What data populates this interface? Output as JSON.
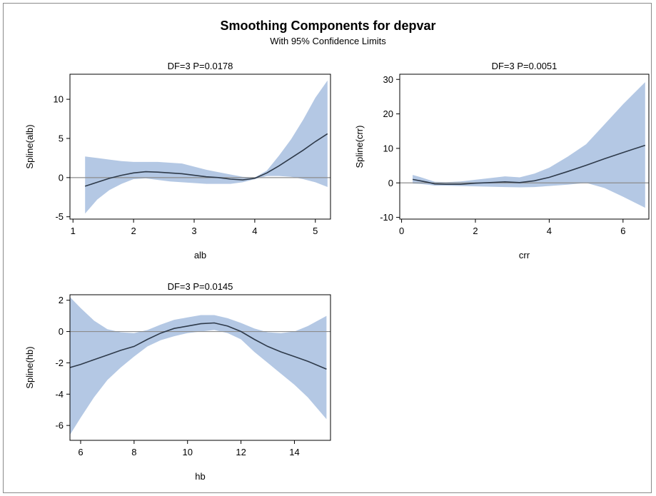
{
  "title": "Smoothing Components for depvar",
  "subtitle": "With 95% Confidence Limits",
  "colors": {
    "band": "#b4c8e4",
    "line": "#2e3a4a",
    "ref": "#8c8c8c",
    "axis": "#000000"
  },
  "chart_data": [
    {
      "type": "line",
      "panel_title": "DF=3   P=0.0178",
      "xlabel": "alb",
      "ylabel": "Spline(alb)",
      "xlim": [
        0.95,
        5.25
      ],
      "ylim": [
        -5.3,
        13.2
      ],
      "xticks": [
        1,
        2,
        3,
        4,
        5
      ],
      "yticks": [
        -5,
        0,
        5,
        10
      ],
      "reference_y": 0,
      "x": [
        1.2,
        1.4,
        1.6,
        1.8,
        2.0,
        2.2,
        2.4,
        2.6,
        2.8,
        3.0,
        3.2,
        3.4,
        3.6,
        3.8,
        4.0,
        4.2,
        4.4,
        4.6,
        4.8,
        5.0,
        5.2
      ],
      "series": [
        {
          "role": "estimate",
          "values": [
            -1.1,
            -0.6,
            -0.1,
            0.3,
            0.6,
            0.75,
            0.7,
            0.6,
            0.5,
            0.3,
            0.1,
            0.0,
            -0.2,
            -0.3,
            -0.1,
            0.6,
            1.5,
            2.5,
            3.5,
            4.6,
            5.6
          ]
        },
        {
          "role": "lower",
          "values": [
            -4.6,
            -2.8,
            -1.6,
            -0.8,
            -0.2,
            -0.1,
            -0.3,
            -0.5,
            -0.6,
            -0.7,
            -0.8,
            -0.8,
            -0.8,
            -0.6,
            -0.2,
            0.2,
            0.2,
            0.1,
            -0.2,
            -0.6,
            -1.2
          ]
        },
        {
          "role": "upper",
          "values": [
            2.7,
            2.5,
            2.3,
            2.1,
            2.0,
            2.0,
            2.0,
            1.9,
            1.8,
            1.4,
            1.0,
            0.7,
            0.4,
            0.1,
            0.0,
            0.9,
            2.8,
            4.9,
            7.4,
            10.2,
            12.4
          ]
        }
      ]
    },
    {
      "type": "line",
      "panel_title": "DF=3   P=0.0051",
      "xlabel": "crr",
      "ylabel": "Spline(crr)",
      "xlim": [
        -0.05,
        6.7
      ],
      "ylim": [
        -10.5,
        31.5
      ],
      "xticks": [
        0,
        2,
        4,
        6
      ],
      "yticks": [
        -10,
        0,
        10,
        20,
        30
      ],
      "reference_y": 0,
      "x": [
        0.3,
        0.5,
        0.7,
        0.9,
        1.2,
        1.6,
        2.0,
        2.4,
        2.8,
        3.2,
        3.6,
        4.0,
        4.5,
        5.0,
        5.5,
        6.0,
        6.6
      ],
      "series": [
        {
          "role": "estimate",
          "values": [
            1.0,
            0.6,
            0.2,
            -0.3,
            -0.4,
            -0.4,
            -0.1,
            0.1,
            0.3,
            0.1,
            0.6,
            1.6,
            3.3,
            5.1,
            7.0,
            8.8,
            10.9
          ]
        },
        {
          "role": "lower",
          "values": [
            -0.2,
            -0.3,
            -0.5,
            -0.8,
            -0.8,
            -0.9,
            -1.0,
            -1.1,
            -1.2,
            -1.3,
            -1.2,
            -0.9,
            -0.5,
            0.0,
            -1.5,
            -4.0,
            -7.2
          ]
        },
        {
          "role": "upper",
          "values": [
            2.3,
            1.7,
            1.0,
            0.3,
            0.2,
            0.4,
            0.9,
            1.4,
            1.9,
            1.6,
            2.7,
            4.4,
            7.6,
            11.2,
            17.0,
            22.8,
            29.2
          ]
        }
      ]
    },
    {
      "type": "line",
      "panel_title": "DF=3   P=0.0145",
      "xlabel": "hb",
      "ylabel": "Spline(hb)",
      "xlim": [
        5.6,
        15.35
      ],
      "ylim": [
        -6.95,
        2.35
      ],
      "xticks": [
        6,
        8,
        10,
        12,
        14
      ],
      "yticks": [
        -6,
        -4,
        -2,
        0,
        2
      ],
      "reference_y": 0,
      "x": [
        5.6,
        6.0,
        6.5,
        7.0,
        7.5,
        8.0,
        8.5,
        9.0,
        9.5,
        10.0,
        10.5,
        11.0,
        11.5,
        12.0,
        12.5,
        13.0,
        13.5,
        14.0,
        14.5,
        15.2
      ],
      "series": [
        {
          "role": "estimate",
          "values": [
            -2.3,
            -2.1,
            -1.8,
            -1.5,
            -1.2,
            -0.95,
            -0.5,
            -0.1,
            0.2,
            0.35,
            0.5,
            0.55,
            0.35,
            0.0,
            -0.5,
            -0.95,
            -1.3,
            -1.6,
            -1.9,
            -2.4
          ]
        },
        {
          "role": "lower",
          "values": [
            -6.6,
            -5.5,
            -4.2,
            -3.1,
            -2.3,
            -1.6,
            -0.95,
            -0.55,
            -0.3,
            -0.1,
            0.0,
            0.1,
            -0.1,
            -0.5,
            -1.3,
            -2.0,
            -2.7,
            -3.4,
            -4.2,
            -5.6
          ]
        },
        {
          "role": "upper",
          "values": [
            2.2,
            1.5,
            0.7,
            0.15,
            -0.05,
            -0.1,
            0.1,
            0.45,
            0.75,
            0.9,
            1.05,
            1.05,
            0.85,
            0.55,
            0.2,
            -0.05,
            -0.1,
            0.0,
            0.35,
            1.0
          ]
        }
      ]
    }
  ]
}
